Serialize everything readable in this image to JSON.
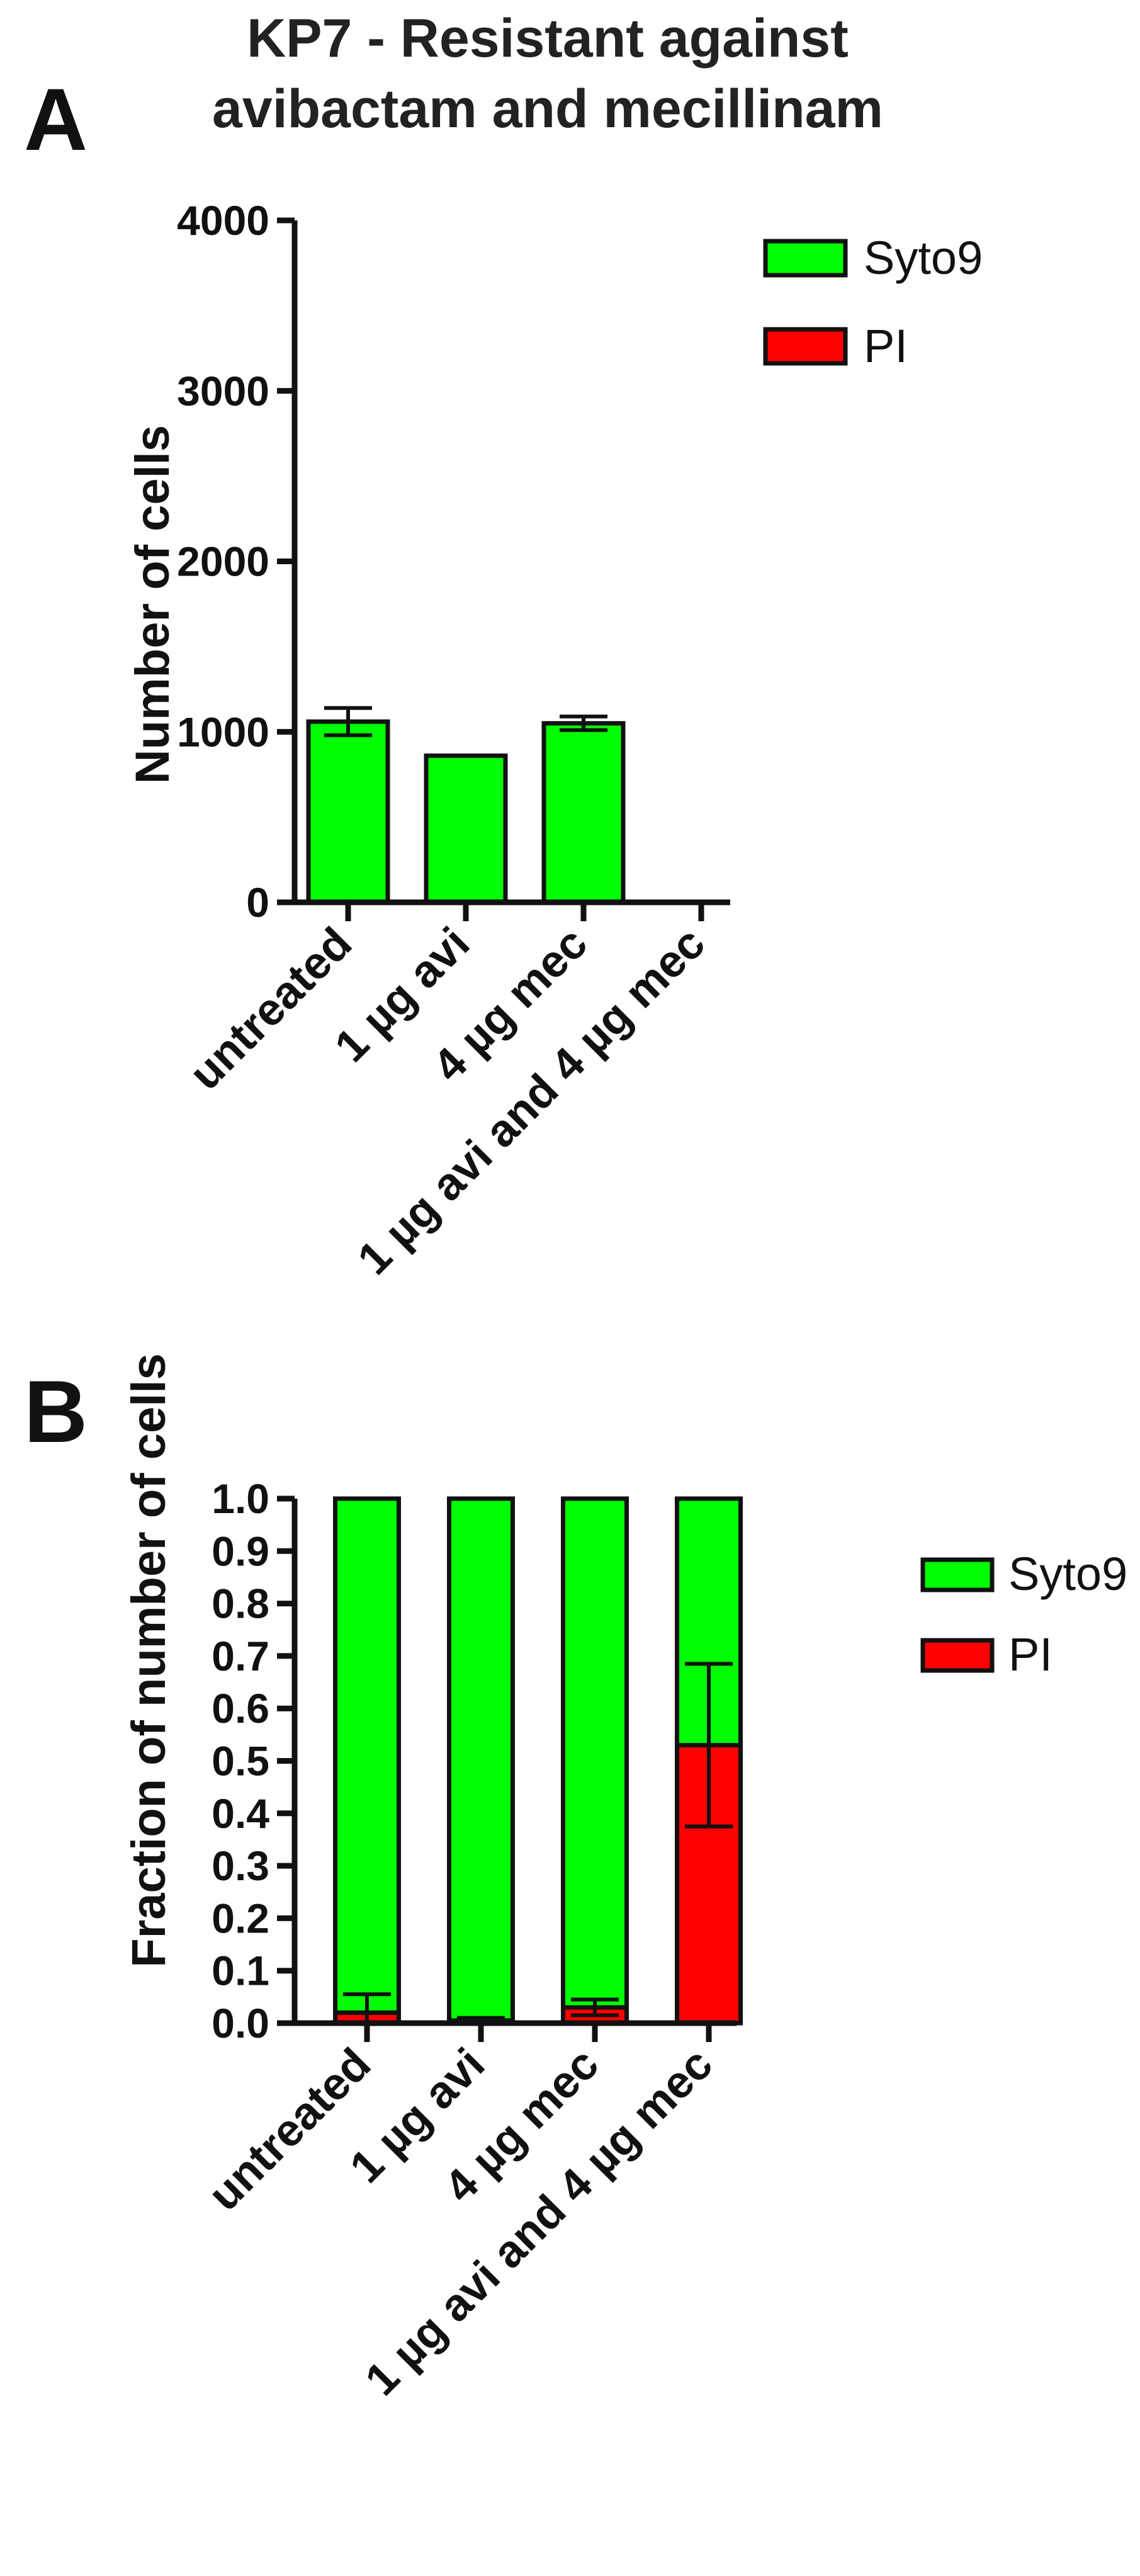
{
  "chart_data": [
    {
      "panel": "A",
      "type": "bar",
      "title": [
        "KP7 - Resistant against",
        "avibactam and mecillinam"
      ],
      "ylabel": "Number of cells",
      "xlabel": "",
      "ylim": [
        0,
        4000
      ],
      "yticks": [
        "0",
        "1000",
        "2000",
        "3000",
        "4000"
      ],
      "categories": [
        "untreated",
        "1 µg avi",
        "4 µg mec",
        "1 µg avi and 4 µg mec"
      ],
      "series": [
        {
          "name": "Syto9",
          "color": "#00ff00",
          "values": [
            1060,
            860,
            1050,
            0
          ]
        },
        {
          "name": "PI",
          "color": "#ff0000",
          "values": [
            0,
            0,
            0,
            0
          ],
          "error": [
            80,
            0,
            40,
            0
          ]
        }
      ],
      "legend": {
        "position": "top-right",
        "entries": [
          "Syto9",
          "PI"
        ]
      },
      "grid": false
    },
    {
      "panel": "B",
      "type": "bar",
      "stacked": true,
      "title": "",
      "ylabel": "Fraction of number of cells",
      "xlabel": "",
      "ylim": [
        0,
        1.0
      ],
      "yticks": [
        "0.0",
        "0.1",
        "0.2",
        "0.3",
        "0.4",
        "0.5",
        "0.6",
        "0.7",
        "0.8",
        "0.9",
        "1.0"
      ],
      "categories": [
        "untreated",
        "1 µg avi",
        "4 µg mec",
        "1 µg avi and 4 µg mec"
      ],
      "series": [
        {
          "name": "PI",
          "color": "#ff0000",
          "values": [
            0.02,
            0.005,
            0.03,
            0.53
          ],
          "error": [
            0.035,
            0.005,
            0.015,
            0.155
          ]
        },
        {
          "name": "Syto9",
          "color": "#00ff00",
          "values": [
            0.98,
            0.995,
            0.97,
            0.47
          ]
        }
      ],
      "legend": {
        "position": "right",
        "entries": [
          "Syto9",
          "PI"
        ]
      },
      "grid": false
    }
  ]
}
